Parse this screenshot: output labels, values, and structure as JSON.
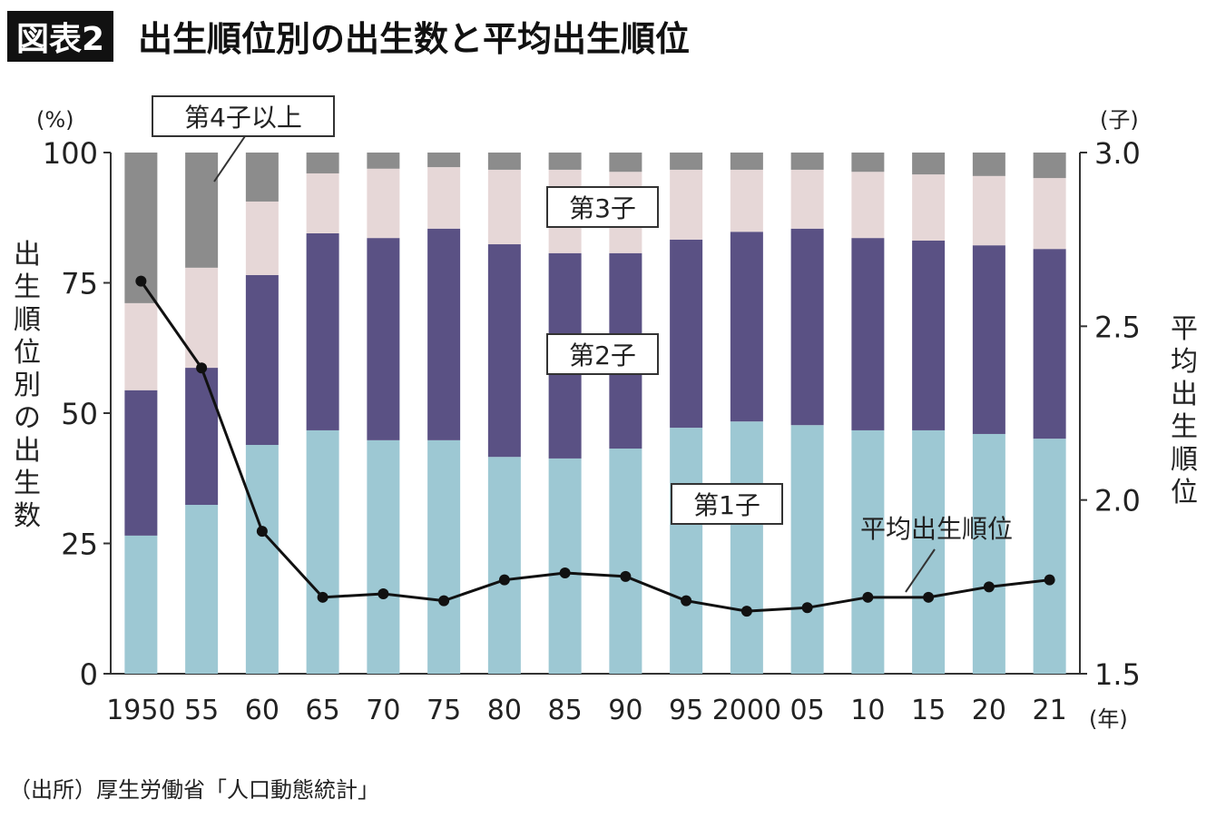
{
  "title_badge": "図表2",
  "title": "出生順位別の出生数と平均出生順位",
  "source": "（出所）厚生労働省「人口動態統計」",
  "chart_data": {
    "type": "bar",
    "stacked": true,
    "categories": [
      "1950",
      "55",
      "60",
      "65",
      "70",
      "75",
      "80",
      "85",
      "90",
      "95",
      "2000",
      "05",
      "10",
      "15",
      "20",
      "21"
    ],
    "x_unit": "(年)",
    "ylabel": "出生順位別の出生数",
    "y_unit": "(%)",
    "ylim": [
      0,
      100
    ],
    "yticks": [
      0,
      25,
      50,
      75,
      100
    ],
    "y2label": "平均出生順位",
    "y2_unit": "(子)",
    "y2lim": [
      1.5,
      3.0
    ],
    "y2ticks": [
      "1.5",
      "2.0",
      "2.5",
      "3.0"
    ],
    "grid": false,
    "series": [
      {
        "name": "第1子",
        "color": "#9dc8d3",
        "values": [
          26.5,
          32.4,
          43.9,
          46.7,
          44.8,
          44.8,
          41.6,
          41.3,
          43.2,
          47.2,
          48.4,
          47.7,
          46.7,
          46.7,
          46.0,
          45.1
        ]
      },
      {
        "name": "第2子",
        "color": "#5a5184",
        "values": [
          27.9,
          26.3,
          32.6,
          37.8,
          38.8,
          40.6,
          40.8,
          39.4,
          37.5,
          36.1,
          36.4,
          37.7,
          36.9,
          36.4,
          36.2,
          36.4
        ]
      },
      {
        "name": "第3子",
        "color": "#e6d7d7",
        "values": [
          16.7,
          19.2,
          14.1,
          11.5,
          13.3,
          11.8,
          14.3,
          16.0,
          15.6,
          13.4,
          11.9,
          11.3,
          12.7,
          12.7,
          13.3,
          13.6
        ]
      },
      {
        "name": "第4子以上",
        "color": "#8c8c8c",
        "values": [
          28.9,
          22.1,
          9.4,
          4.0,
          3.1,
          2.8,
          3.3,
          3.3,
          3.7,
          3.3,
          3.3,
          3.3,
          3.7,
          4.2,
          4.5,
          4.9
        ]
      }
    ],
    "line": {
      "name": "平均出生順位",
      "axis": "right",
      "color": "#111111",
      "values": [
        2.63,
        2.38,
        1.91,
        1.72,
        1.73,
        1.71,
        1.77,
        1.79,
        1.78,
        1.71,
        1.68,
        1.69,
        1.72,
        1.72,
        1.75,
        1.77
      ]
    }
  }
}
